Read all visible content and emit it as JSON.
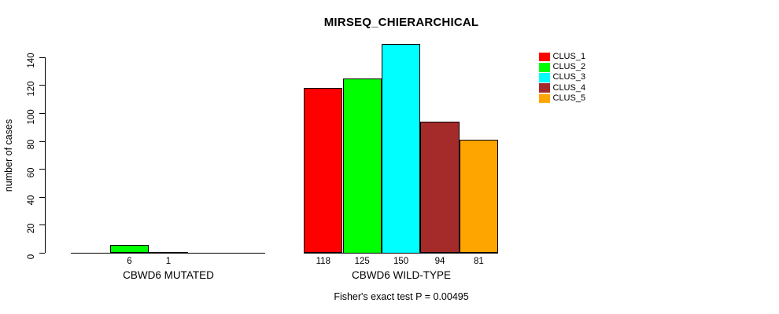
{
  "chart_data": {
    "type": "bar",
    "title": "MIRSEQ_CHIERARCHICAL",
    "ylabel": "number of cases",
    "xlabel": "",
    "subtitle": "Fisher's exact test P = 0.00495",
    "ylim": [
      0,
      150
    ],
    "yticks": [
      0,
      20,
      40,
      60,
      80,
      100,
      120,
      140
    ],
    "grid": false,
    "legend_position": "top-right",
    "series_names": [
      "CLUS_1",
      "CLUS_2",
      "CLUS_3",
      "CLUS_4",
      "CLUS_5"
    ],
    "colors": [
      "#FF0000",
      "#00FF00",
      "#00FFFF",
      "#A52A2A",
      "#FFA500"
    ],
    "categories": [
      "CBWD6 MUTATED",
      "CBWD6 WILD-TYPE"
    ],
    "groups": [
      {
        "label": "CBWD6 MUTATED",
        "values": [
          0,
          6,
          1,
          0,
          0
        ],
        "bar_labels": [
          "",
          "6",
          "1",
          "",
          ""
        ]
      },
      {
        "label": "CBWD6 WILD-TYPE",
        "values": [
          118,
          125,
          150,
          94,
          81
        ],
        "bar_labels": [
          "118",
          "125",
          "150",
          "94",
          "81"
        ]
      }
    ]
  }
}
